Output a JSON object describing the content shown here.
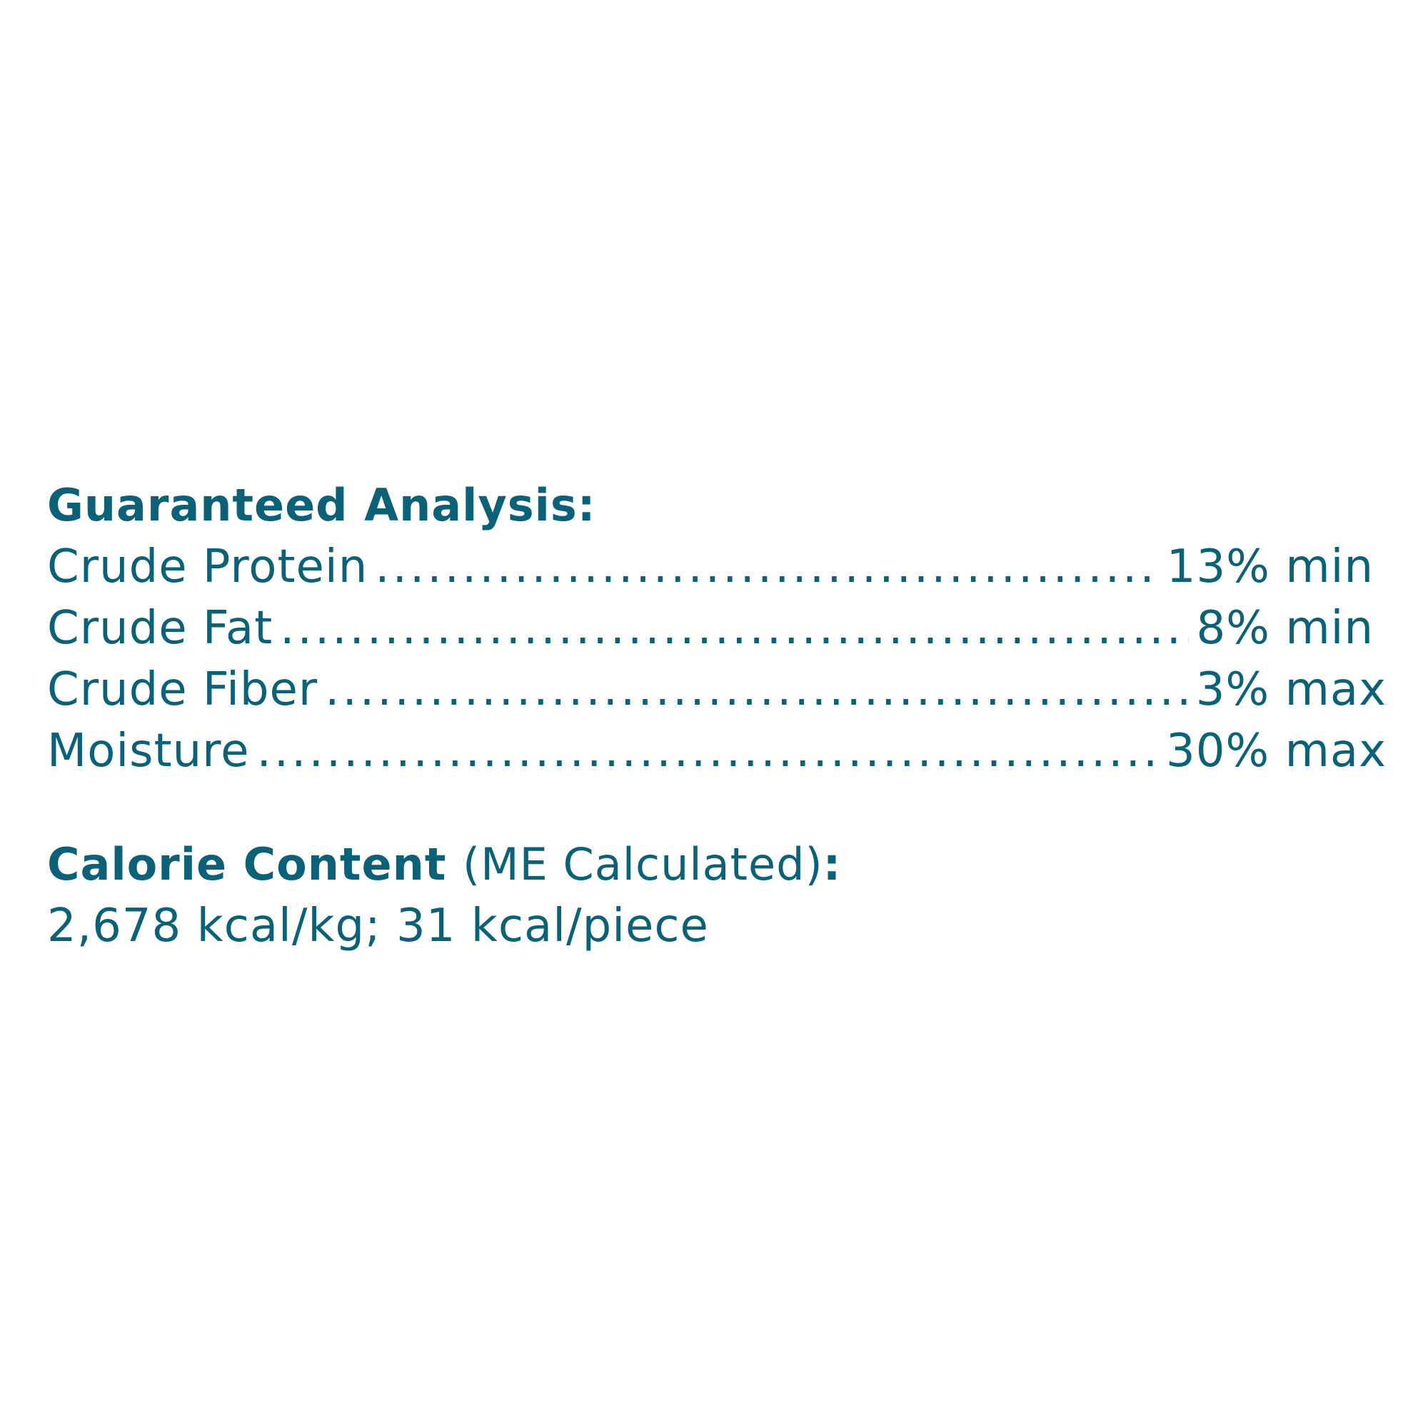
{
  "guaranteed_analysis": {
    "title": "Guaranteed Analysis:",
    "rows": [
      {
        "label": "Crude Protein",
        "value": "13% min"
      },
      {
        "label": "Crude Fat",
        "value": "8% min"
      },
      {
        "label": "Crude Fiber",
        "value": "3% max"
      },
      {
        "label": "Moisture",
        "value": "30% max"
      }
    ]
  },
  "calorie_content": {
    "title": "Calorie Content",
    "qualifier": "(ME Calculated)",
    "colon": ":",
    "value": "2,678 kcal/kg; 31 kcal/piece"
  },
  "colors": {
    "text": "#0b6178",
    "background": "#ffffff"
  }
}
